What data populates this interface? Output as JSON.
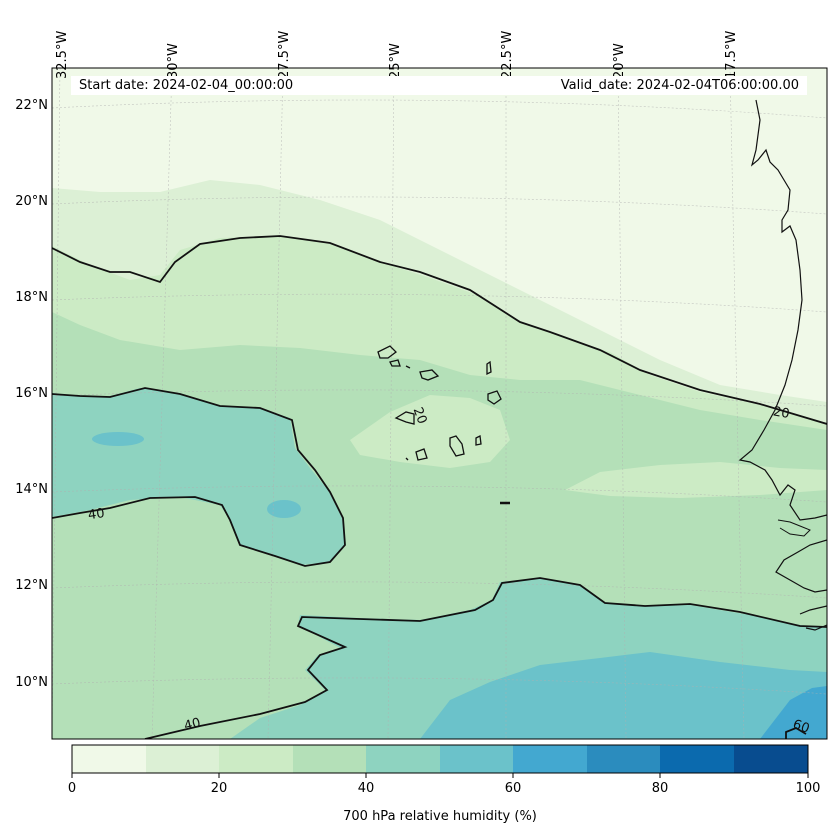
{
  "map": {
    "projection": "Lambert-like regional",
    "extent": {
      "lon_min": -33.0,
      "lon_max": -15.7,
      "lat_min": 8.8,
      "lat_max": 22.8
    },
    "lon_ticks": [
      {
        "label": "32.5°W"
      },
      {
        "label": "30°W"
      },
      {
        "label": "27.5°W"
      },
      {
        "label": "25°W"
      },
      {
        "label": "22.5°W"
      },
      {
        "label": "20°W"
      },
      {
        "label": "17.5°W"
      }
    ],
    "lat_ticks": [
      {
        "label": "22°N"
      },
      {
        "label": "20°N"
      },
      {
        "label": "18°N"
      },
      {
        "label": "16°N"
      },
      {
        "label": "14°N"
      },
      {
        "label": "12°N"
      },
      {
        "label": "10°N"
      }
    ],
    "start_date": "Start date: 2024-02-04_00:00:00",
    "valid_date": "Valid_date: 2024-02-04T06:00:00.00",
    "contour_labels": [
      "40",
      "40",
      "20",
      "20",
      "60"
    ],
    "features": [
      "Cape Verde islands",
      "West African coastline (Senegal, Gambia, Guinea-Bissau)"
    ]
  },
  "colorbar": {
    "title": "700 hPa relative humidity (%)",
    "levels": [
      0,
      10,
      20,
      30,
      40,
      50,
      60,
      70,
      80,
      90,
      100
    ],
    "colors": [
      "#f0f9e8",
      "#dcf0d5",
      "#ccebc5",
      "#b4e0b8",
      "#8ed3c0",
      "#6bc2ca",
      "#43a8d0",
      "#2b8cbe",
      "#0b6aae",
      "#084c8f"
    ],
    "tick_labels": [
      "0",
      "20",
      "40",
      "60",
      "80",
      "100"
    ]
  }
}
